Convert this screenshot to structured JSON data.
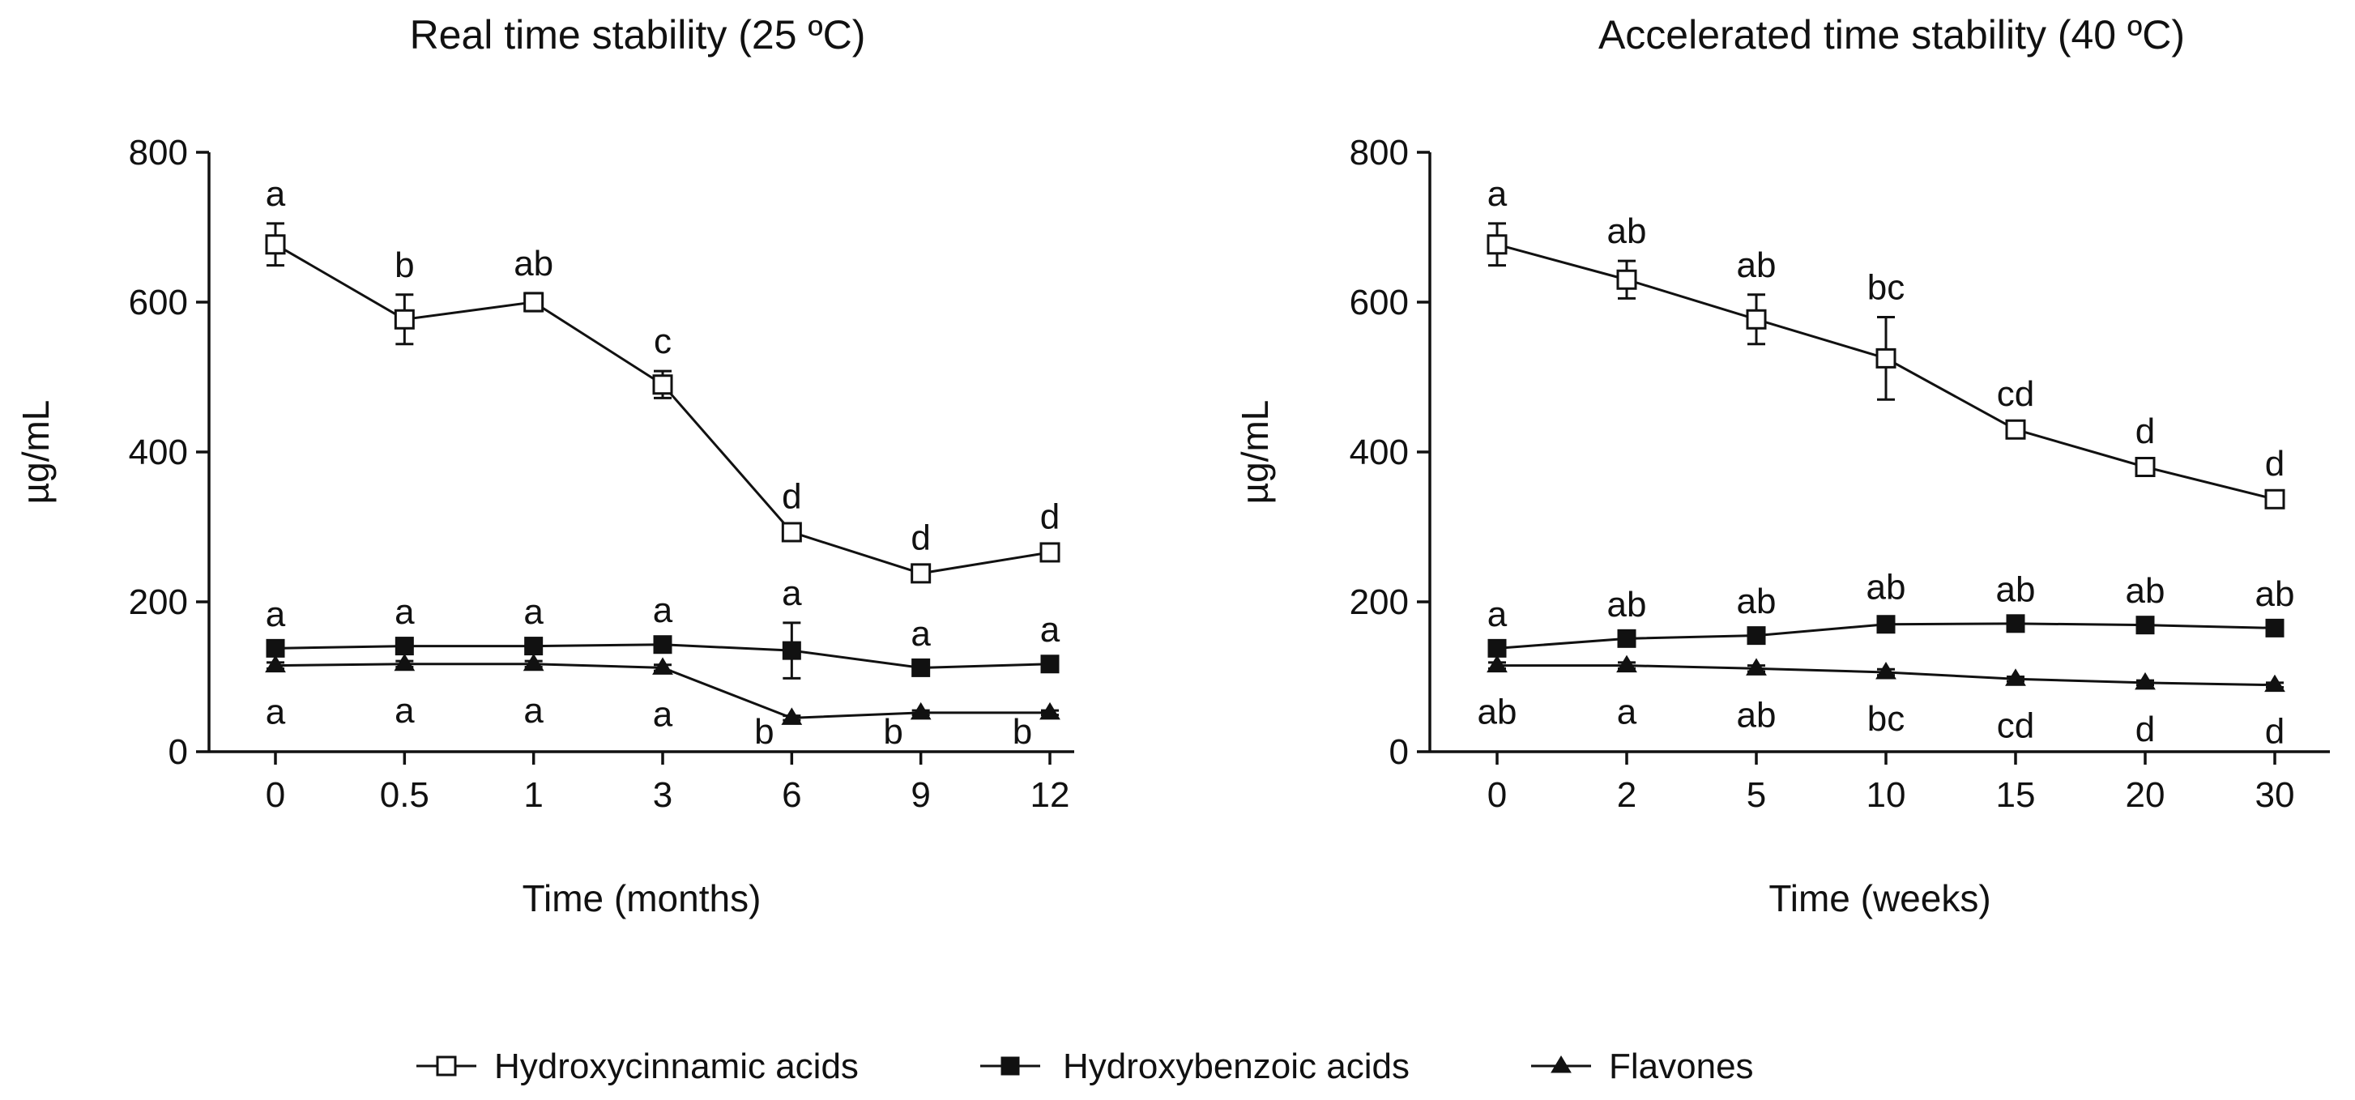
{
  "chart_data": [
    {
      "type": "line",
      "title": "Real time stability (25 ºC)",
      "xlabel": "Time (months)",
      "ylabel": "µg/mL",
      "ylim": [
        0,
        800
      ],
      "yticks": [
        "0",
        "200",
        "400",
        "600",
        "800"
      ],
      "categories": [
        "0",
        "0.5",
        "1",
        "3",
        "6",
        "9",
        "12"
      ],
      "series": [
        {
          "name": "Hydroxycinnamic acids",
          "marker": "open-square",
          "values": [
            677,
            577,
            600,
            490,
            293,
            238,
            266
          ],
          "errors": [
            28,
            33,
            12,
            18,
            8,
            8,
            8
          ],
          "labels": [
            "a",
            "b",
            "ab",
            "c",
            "d",
            "d",
            "d"
          ],
          "label_pos": "above"
        },
        {
          "name": "Hydroxybenzoic acids",
          "marker": "filled-square",
          "values": [
            138,
            141,
            141,
            143,
            135,
            112,
            117
          ],
          "errors": [
            6,
            6,
            6,
            6,
            37,
            6,
            6
          ],
          "labels": [
            "a",
            "a",
            "a",
            "a",
            "a",
            "a",
            "a"
          ],
          "label_pos": "above"
        },
        {
          "name": "Flavones",
          "marker": "filled-triangle",
          "values": [
            115,
            117,
            117,
            112,
            45,
            52,
            52
          ],
          "errors": [
            4,
            4,
            4,
            4,
            3,
            3,
            3
          ],
          "labels": [
            "a",
            "a",
            "a",
            "a",
            "b",
            "b",
            "b"
          ],
          "label_pos": "below"
        }
      ]
    },
    {
      "type": "line",
      "title": "Accelerated time stability (40 ºC)",
      "xlabel": "Time (weeks)",
      "ylabel": "µg/mL",
      "ylim": [
        0,
        800
      ],
      "yticks": [
        "0",
        "200",
        "400",
        "600",
        "800"
      ],
      "categories": [
        "0",
        "2",
        "5",
        "10",
        "15",
        "20",
        "30"
      ],
      "series": [
        {
          "name": "Hydroxycinnamic acids",
          "marker": "open-square",
          "values": [
            677,
            630,
            577,
            525,
            430,
            380,
            337
          ],
          "errors": [
            28,
            25,
            33,
            55,
            8,
            8,
            8
          ],
          "labels": [
            "a",
            "ab",
            "ab",
            "bc",
            "cd",
            "d",
            "d"
          ],
          "label_pos": "above"
        },
        {
          "name": "Hydroxybenzoic acids",
          "marker": "filled-square",
          "values": [
            138,
            151,
            155,
            170,
            171,
            169,
            165
          ],
          "errors": [
            6,
            6,
            6,
            10,
            6,
            6,
            6
          ],
          "labels": [
            "a",
            "ab",
            "ab",
            "ab",
            "ab",
            "ab",
            "ab"
          ],
          "label_pos": "above"
        },
        {
          "name": "Flavones",
          "marker": "filled-triangle",
          "values": [
            115,
            115,
            111,
            106,
            97,
            92,
            89
          ],
          "errors": [
            4,
            4,
            4,
            4,
            3,
            3,
            3
          ],
          "labels": [
            "ab",
            "a",
            "ab",
            "bc",
            "cd",
            "d",
            "d"
          ],
          "label_pos": "below"
        }
      ]
    }
  ],
  "legend": [
    {
      "name": "Hydroxycinnamic acids",
      "marker": "open-square"
    },
    {
      "name": "Hydroxybenzoic acids",
      "marker": "filled-square"
    },
    {
      "name": "Flavones",
      "marker": "filled-triangle"
    }
  ]
}
